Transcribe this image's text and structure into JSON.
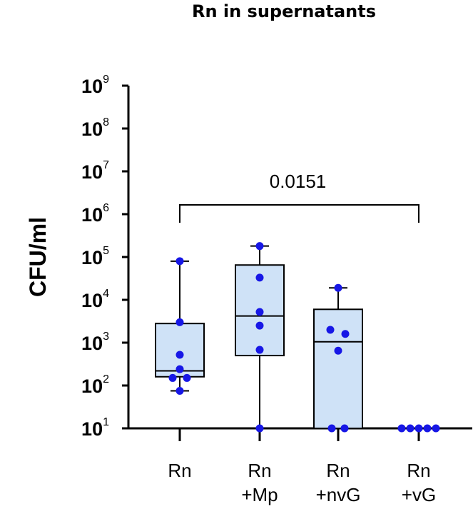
{
  "chart_data": {
    "type": "box",
    "title": "Rn in supernatants",
    "ylabel": "CFU/ml",
    "xlabel": "",
    "yscale": "log",
    "ylim": [
      10,
      1000000000
    ],
    "yticks": [
      {
        "base": "10",
        "exp": "9",
        "value": 1000000000
      },
      {
        "base": "10",
        "exp": "8",
        "value": 100000000
      },
      {
        "base": "10",
        "exp": "7",
        "value": 10000000
      },
      {
        "base": "10",
        "exp": "6",
        "value": 1000000
      },
      {
        "base": "10",
        "exp": "5",
        "value": 100000
      },
      {
        "base": "10",
        "exp": "4",
        "value": 10000
      },
      {
        "base": "10",
        "exp": "3",
        "value": 1000
      },
      {
        "base": "10",
        "exp": "2",
        "value": 100
      },
      {
        "base": "10",
        "exp": "1",
        "value": 10
      }
    ],
    "categories": [
      {
        "lines": [
          "Rn"
        ]
      },
      {
        "lines": [
          "Rn",
          "+Mp"
        ]
      },
      {
        "lines": [
          "Rn",
          "+nvG"
        ]
      },
      {
        "lines": [
          "Rn",
          "+vG"
        ]
      }
    ],
    "boxes": [
      {
        "min": 75,
        "q1": 160,
        "median": 220,
        "q3": 2800,
        "max": 80000
      },
      {
        "min": 10,
        "q1": 500,
        "median": 4200,
        "q3": 65000,
        "max": 180000
      },
      {
        "min": 10,
        "q1": 10,
        "median": 1050,
        "q3": 6000,
        "max": 19000
      },
      {
        "min": 10,
        "q1": 10,
        "median": 10,
        "q3": 10,
        "max": 10
      }
    ],
    "points": [
      [
        {
          "dx": 0,
          "y": 80000
        },
        {
          "dx": 0,
          "y": 3000
        },
        {
          "dx": 0,
          "y": 520
        },
        {
          "dx": 0,
          "y": 240
        },
        {
          "dx": -10,
          "y": 150
        },
        {
          "dx": 10,
          "y": 150
        },
        {
          "dx": 0,
          "y": 75
        }
      ],
      [
        {
          "dx": 0,
          "y": 180000
        },
        {
          "dx": 0,
          "y": 33000
        },
        {
          "dx": 0,
          "y": 5200
        },
        {
          "dx": 0,
          "y": 2500
        },
        {
          "dx": 0,
          "y": 680
        },
        {
          "dx": 0,
          "y": 10
        }
      ],
      [
        {
          "dx": 0,
          "y": 19000
        },
        {
          "dx": -11,
          "y": 2000
        },
        {
          "dx": 10,
          "y": 1600
        },
        {
          "dx": 0,
          "y": 650
        },
        {
          "dx": -9,
          "y": 10
        },
        {
          "dx": 9,
          "y": 10
        }
      ],
      [
        {
          "dx": -24,
          "y": 10
        },
        {
          "dx": -12,
          "y": 10
        },
        {
          "dx": 0,
          "y": 10
        },
        {
          "dx": 12,
          "y": 10
        },
        {
          "dx": 24,
          "y": 10
        }
      ]
    ],
    "comparison": {
      "label": "0.0151",
      "from": 0,
      "to": 3
    },
    "colors": {
      "box_fill": "#cfe2f7",
      "points": "#1717e6",
      "lines": "#000000"
    }
  }
}
